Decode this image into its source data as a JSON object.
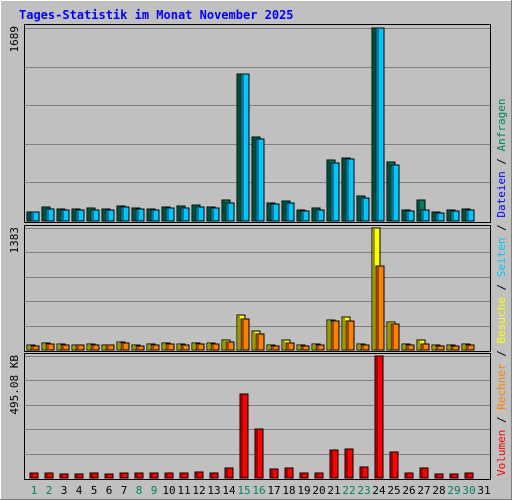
{
  "chart_data": {
    "type": "bar",
    "title": "Tages-Statistik im Monat November 2025",
    "categories": [
      "1",
      "2",
      "3",
      "4",
      "5",
      "6",
      "7",
      "8",
      "9",
      "10",
      "11",
      "12",
      "13",
      "14",
      "15",
      "16",
      "17",
      "18",
      "19",
      "20",
      "21",
      "22",
      "23",
      "24",
      "25",
      "26",
      "27",
      "28",
      "29",
      "30",
      "31"
    ],
    "weekend_days": [
      1,
      2,
      8,
      9,
      15,
      16,
      22,
      23,
      29,
      30
    ],
    "panels": [
      {
        "id": "top",
        "ylabel": "1689",
        "ymax": 1689,
        "series": [
          {
            "name": "Anfragen",
            "color": "#008060",
            "values": [
              82,
              122,
              105,
              105,
              110,
              105,
              135,
              118,
              107,
              123,
              128,
              140,
              125,
              180,
              1289,
              735,
              155,
              175,
              95,
              110,
              530,
              555,
              220,
              1689,
              515,
              95,
              180,
              75,
              95,
              102,
              null
            ]
          },
          {
            "name": "Dateien",
            "color": "#00c8ff",
            "values": [
              75,
              108,
              96,
              96,
              100,
              96,
              124,
              107,
              97,
              113,
              118,
              126,
              114,
              160,
              1289,
              720,
              150,
              160,
              88,
              100,
              510,
              540,
              200,
              1689,
              490,
              88,
              100,
              68,
              85,
              92,
              null
            ]
          }
        ]
      },
      {
        "id": "middle",
        "ylabel": "1383",
        "ymax": 1383,
        "series": [
          {
            "name": "Seiten",
            "color": "#00c8ff",
            "values": [
              null,
              null,
              null,
              null,
              null,
              null,
              null,
              null,
              null,
              null,
              null,
              null,
              null,
              null,
              null,
              null,
              null,
              null,
              null,
              null,
              null,
              null,
              null,
              null,
              null,
              null,
              null,
              null,
              null,
              null,
              null
            ]
          },
          {
            "name": "Besuche",
            "color": "#ffff00",
            "values": [
              55,
              80,
              65,
              60,
              65,
              60,
              95,
              55,
              70,
              75,
              70,
              75,
              80,
              115,
              400,
              215,
              55,
              110,
              60,
              70,
              340,
              370,
              70,
              1383,
              320,
              65,
              110,
              55,
              55,
              65,
              null
            ]
          },
          {
            "name": "Rechner",
            "color": "#ff8000",
            "values": [
              50,
              70,
              60,
              55,
              60,
              55,
              80,
              50,
              60,
              65,
              60,
              65,
              70,
              90,
              355,
              185,
              50,
              80,
              50,
              60,
              325,
              330,
              60,
              950,
              300,
              55,
              70,
              50,
              50,
              55,
              null
            ]
          }
        ]
      },
      {
        "id": "bottom",
        "ylabel": "495.08 KB",
        "ymax": 495.08,
        "series": [
          {
            "name": "Volumen",
            "color": "#ff0000",
            "values": [
              20,
              22,
              18,
              18,
              20,
              18,
              22,
              22,
              20,
              22,
              22,
              25,
              22,
              40,
              340,
              198,
              35,
              40,
              20,
              22,
              112,
              118,
              45,
              495,
              105,
              20,
              40,
              15,
              18,
              20,
              null
            ]
          }
        ]
      }
    ]
  },
  "legend": [
    {
      "text": "Volumen",
      "color": "#ff0000"
    },
    {
      "text": " / ",
      "color": "#000000"
    },
    {
      "text": "Rechner",
      "color": "#ff8000"
    },
    {
      "text": " / ",
      "color": "#000000"
    },
    {
      "text": "Besuche",
      "color": "#ffff00"
    },
    {
      "text": " / ",
      "color": "#000000"
    },
    {
      "text": "Seiten",
      "color": "#00c8ff"
    },
    {
      "text": " / ",
      "color": "#000000"
    },
    {
      "text": "Dateien",
      "color": "#0000ff"
    },
    {
      "text": " / ",
      "color": "#000000"
    },
    {
      "text": "Anfragen",
      "color": "#008060"
    }
  ],
  "colors": {
    "title": "#0000ff",
    "background": "#c0c0c0",
    "gridline": "#808080",
    "weekend_label": "#008060",
    "weekday_label": "#000000"
  }
}
